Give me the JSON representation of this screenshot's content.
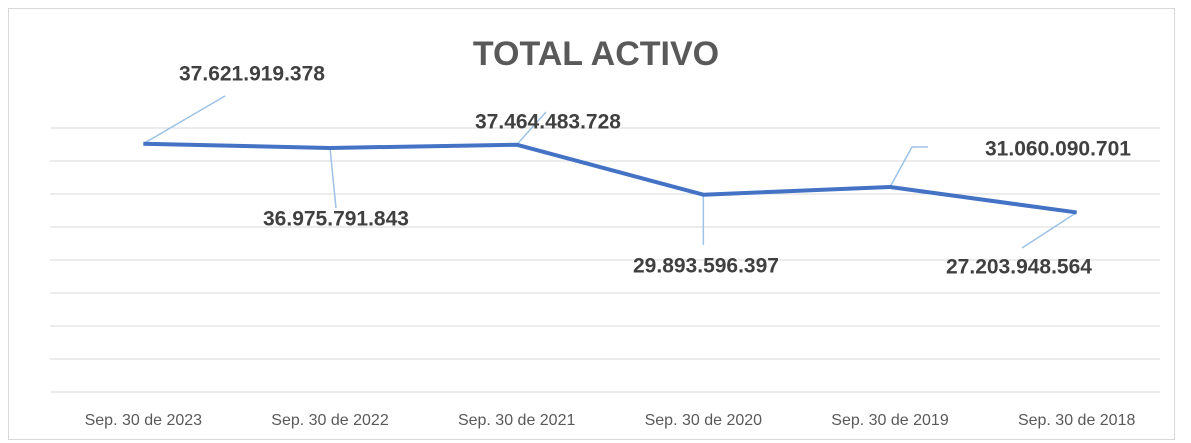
{
  "chart_data": {
    "type": "line",
    "title": "TOTAL ACTIVO",
    "categories": [
      "Sep. 30 de 2023",
      "Sep. 30 de 2022",
      "Sep. 30 de 2021",
      "Sep. 30 de 2020",
      "Sep. 30 de 2019",
      "Sep. 30 de 2018"
    ],
    "series": [
      {
        "color": "#4472c4",
        "values": [
          37621919378,
          36975791843,
          37464483728,
          29893596397,
          31060090701,
          27203948564
        ],
        "value_labels": [
          "37.621.919.378",
          "36.975.791.843",
          "37.464.483.728",
          "29.893.596.397",
          "31.060.090.701",
          "27.203.948.564"
        ]
      }
    ],
    "ylim": [
      0,
      40000000000
    ],
    "yticks": [
      0,
      5000000000,
      10000000000,
      15000000000,
      20000000000,
      25000000000,
      30000000000,
      35000000000,
      40000000000
    ],
    "grid": true
  }
}
